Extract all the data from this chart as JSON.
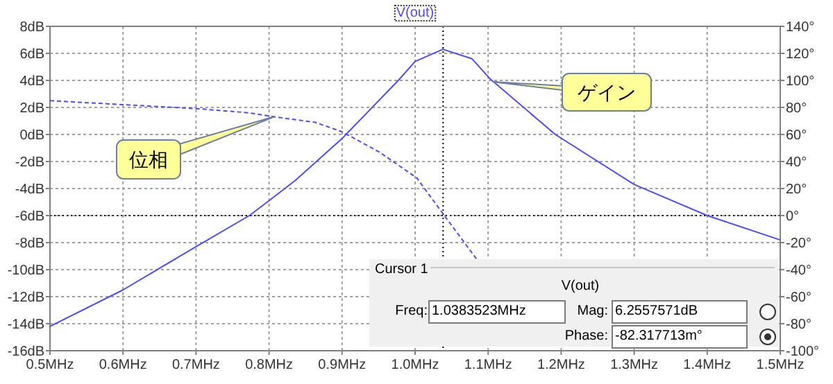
{
  "chart_data": {
    "type": "line",
    "title": "V(out)",
    "x": [
      0.5,
      0.6,
      0.7,
      0.773,
      0.8,
      0.836,
      0.9,
      0.977,
      1.0,
      1.038,
      1.078,
      1.103,
      1.192,
      1.3,
      1.4,
      1.5
    ],
    "series": [
      {
        "color": "#4a4aff",
        "line_style": "solid",
        "values": [
          -14.2,
          -11.5,
          -8.3,
          -6.0,
          -4.9,
          -3.4,
          -0.3,
          4.0,
          5.4,
          6.3,
          5.6,
          4.1,
          0.0,
          -3.7,
          -6.0,
          -7.8
        ]
      },
      {
        "color": "#4a4aff",
        "line_style": "dashed",
        "axis": "y2",
        "x": [
          0.5,
          0.603,
          0.704,
          0.773,
          0.808,
          0.863,
          0.9,
          0.951,
          1.002,
          1.04,
          1.084
        ],
        "values": [
          85,
          82,
          79,
          76,
          73,
          69,
          62,
          47,
          28,
          0,
          -32
        ]
      }
    ],
    "xlim": [
      0.5,
      1.5
    ],
    "xticks": [
      {
        "value": 0.5,
        "label": "0.5MHz"
      },
      {
        "value": 0.6,
        "label": "0.6MHz"
      },
      {
        "value": 0.7,
        "label": "0.7MHz"
      },
      {
        "value": 0.8,
        "label": "0.8MHz"
      },
      {
        "value": 0.9,
        "label": "0.9MHz"
      },
      {
        "value": 1.0,
        "label": "1.0MHz"
      },
      {
        "value": 1.1,
        "label": "1.1MHz"
      },
      {
        "value": 1.2,
        "label": "1.2MHz"
      },
      {
        "value": 1.3,
        "label": "1.3MHz"
      },
      {
        "value": 1.4,
        "label": "1.4MHz"
      },
      {
        "value": 1.5,
        "label": "1.5MHz"
      }
    ],
    "ylim": [
      -16,
      8
    ],
    "yticks": [
      {
        "value": -16,
        "label": "-16dB"
      },
      {
        "value": -14,
        "label": "-14dB"
      },
      {
        "value": -12,
        "label": "-12dB"
      },
      {
        "value": -10,
        "label": "-10dB"
      },
      {
        "value": -8,
        "label": "-8dB"
      },
      {
        "value": -6,
        "label": "-6dB"
      },
      {
        "value": -4,
        "label": "-4dB"
      },
      {
        "value": -2,
        "label": "-2dB"
      },
      {
        "value": 0,
        "label": "0dB"
      },
      {
        "value": 2,
        "label": "2dB"
      },
      {
        "value": 4,
        "label": "4dB"
      },
      {
        "value": 6,
        "label": "6dB"
      },
      {
        "value": 8,
        "label": "8dB"
      }
    ],
    "y2lim": [
      -100,
      140
    ],
    "y2ticks": [
      {
        "value": -100,
        "label": "-100°"
      },
      {
        "value": -80,
        "label": "-80°"
      },
      {
        "value": -60,
        "label": "-60°"
      },
      {
        "value": -40,
        "label": "-40°"
      },
      {
        "value": -20,
        "label": "-20°"
      },
      {
        "value": 0,
        "label": "0°"
      },
      {
        "value": 20,
        "label": "20°"
      },
      {
        "value": 40,
        "label": "40°"
      },
      {
        "value": 60,
        "label": "60°"
      },
      {
        "value": 80,
        "label": "80°"
      },
      {
        "value": 100,
        "label": "100°"
      },
      {
        "value": 120,
        "label": "120°"
      },
      {
        "value": 140,
        "label": "140°"
      }
    ],
    "grid": true,
    "ref_lines": [
      {
        "axis": "x",
        "value": 1.0383523,
        "color": "#000000",
        "line_style": "dotted"
      },
      {
        "axis": "y2",
        "value": 0,
        "color": "#000000",
        "line_style": "dotted"
      }
    ],
    "annotations": [
      {
        "text": "ゲイン",
        "x": 1.106,
        "y": 3.9
      },
      {
        "text": "位相",
        "x": 0.808,
        "y": 1.33
      },
      "Cursor 1",
      "V(out)",
      "Freq:",
      "1.0383523MHz",
      "Mag:",
      "6.2557571dB",
      "Phase:",
      "-82.317713m°"
    ]
  }
}
